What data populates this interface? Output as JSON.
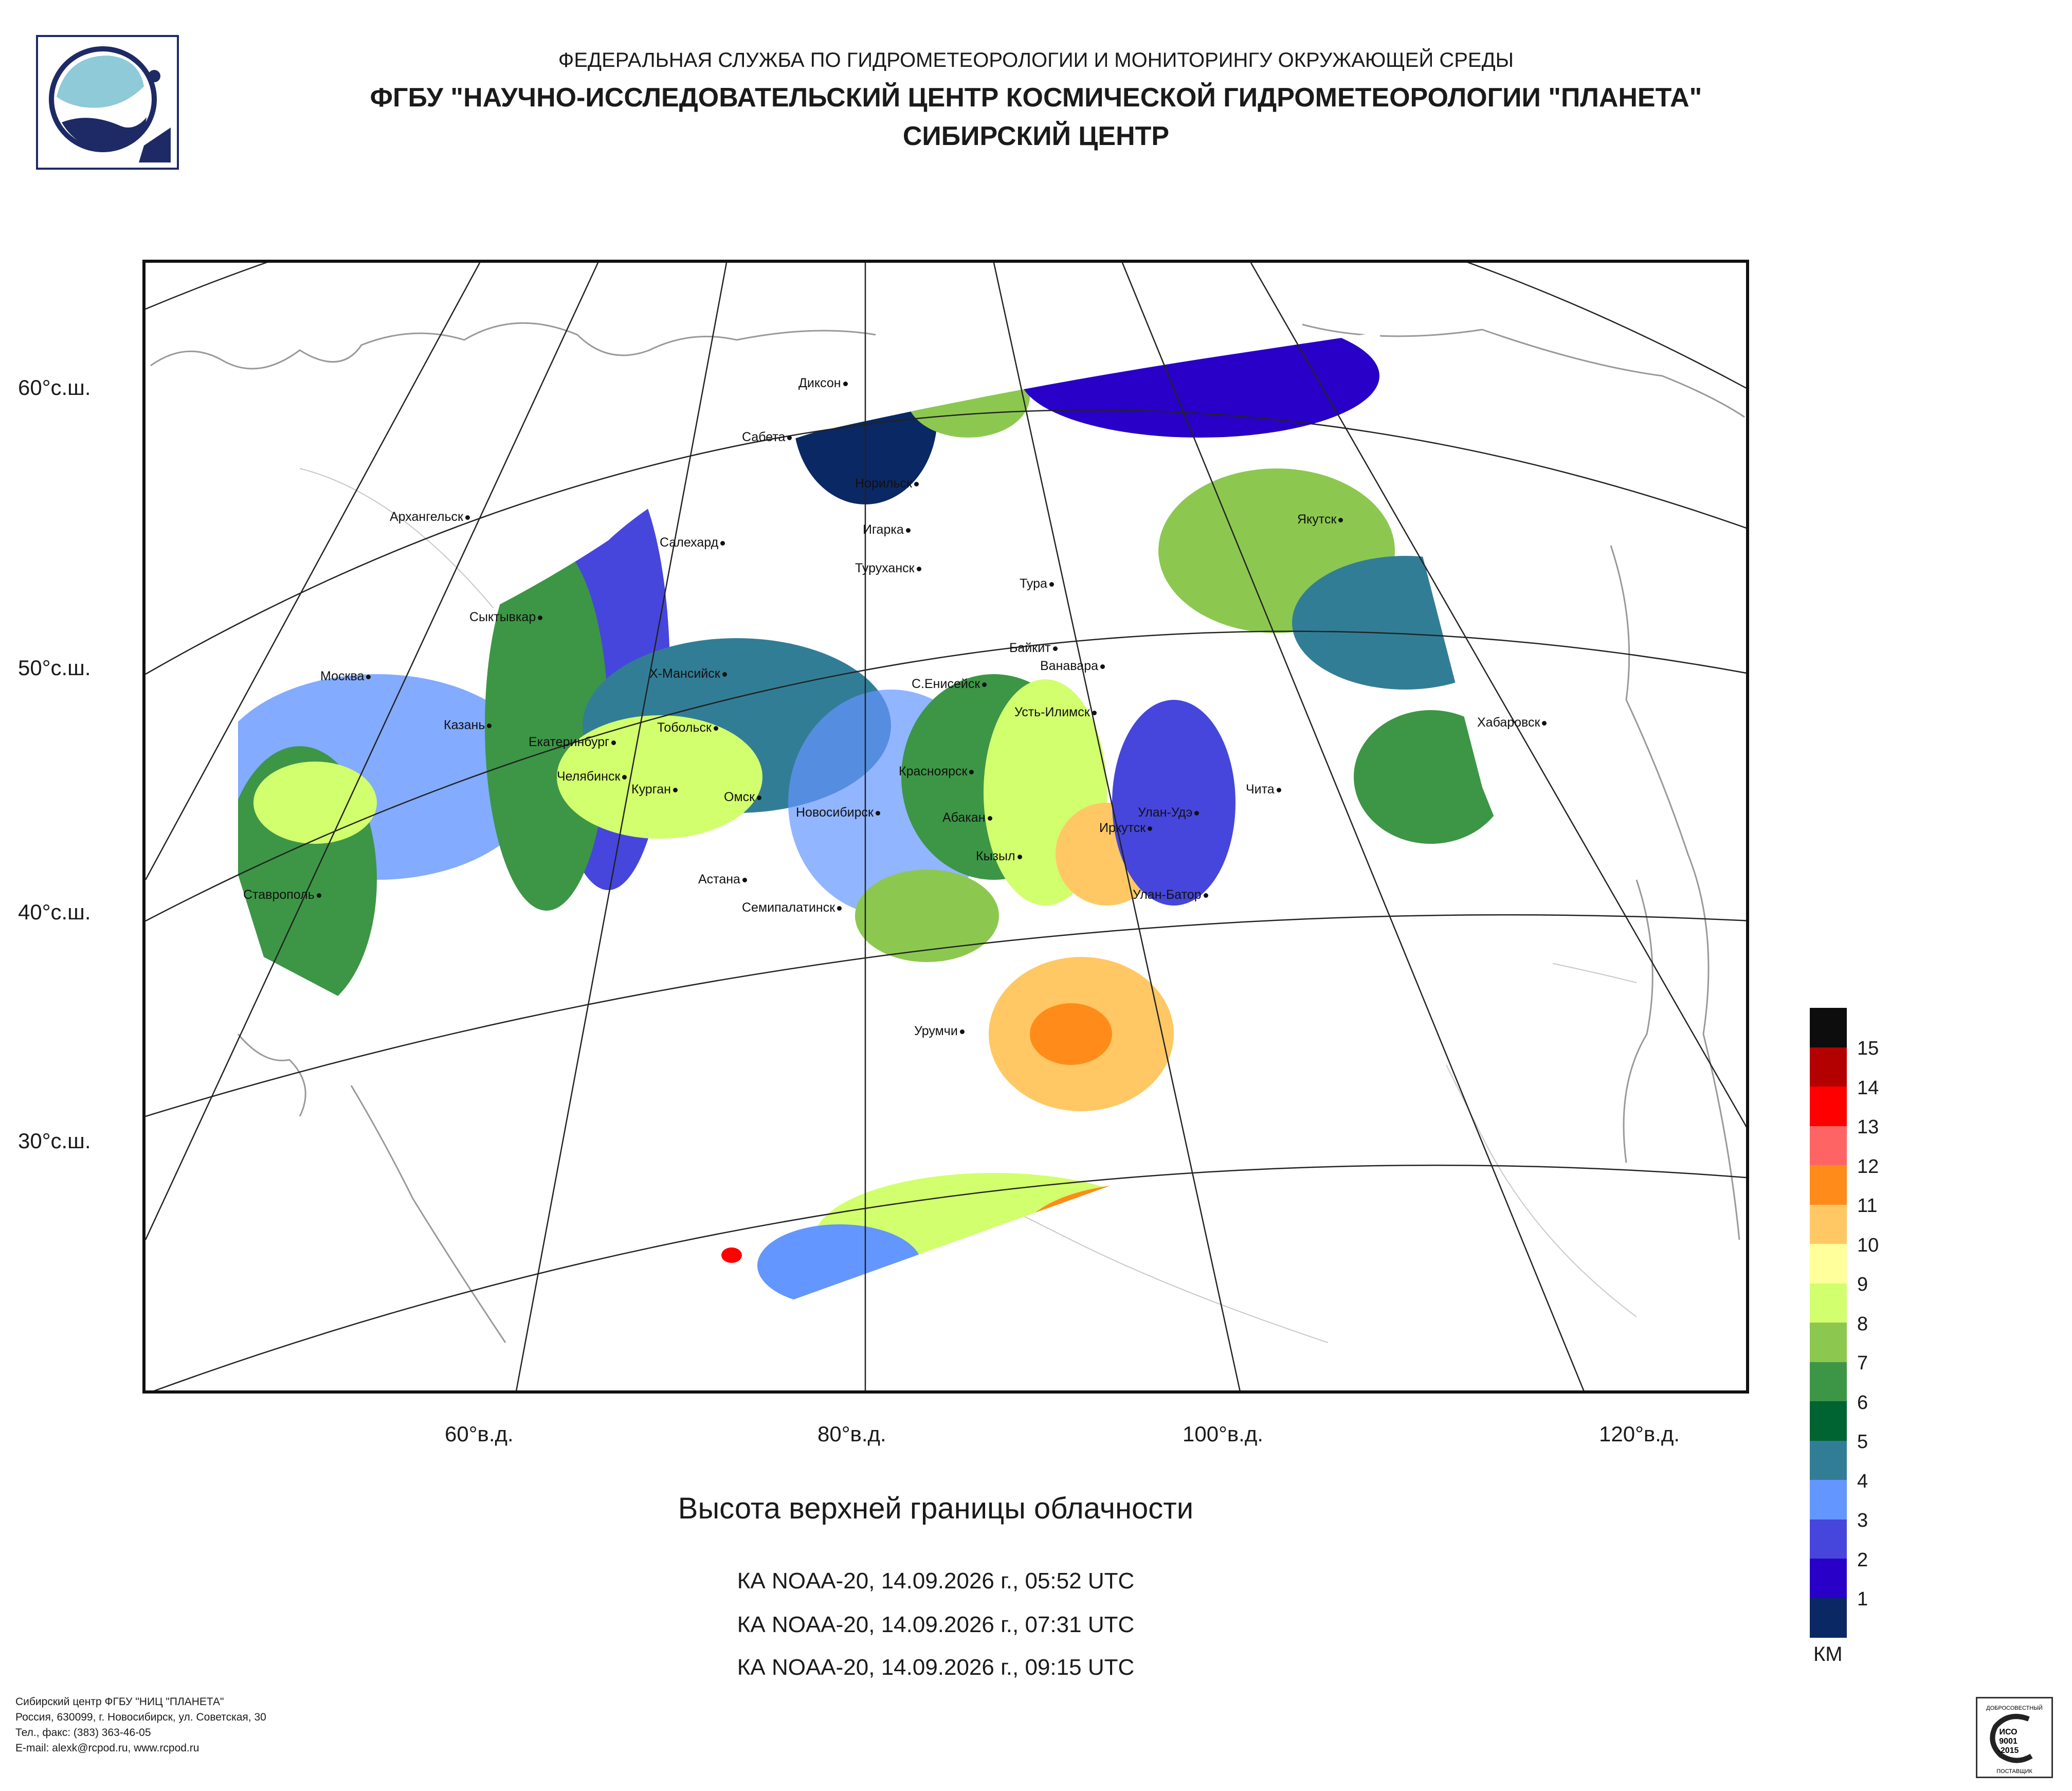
{
  "header": {
    "agency": "ФЕДЕРАЛЬНАЯ СЛУЖБА ПО ГИДРОМЕТЕОРОЛОГИИ И МОНИТОРИНГУ ОКРУЖАЮЩЕЙ СРЕДЫ",
    "institute": "ФГБУ \"НАУЧНО-ИССЛЕДОВАТЕЛЬСКИЙ ЦЕНТР КОСМИЧЕСКОЙ ГИДРОМЕТЕОРОЛОГИИ \"ПЛАНЕТА\"",
    "center": "СИБИРСКИЙ ЦЕНТР"
  },
  "map": {
    "lat_labels": [
      "60°с.ш.",
      "50°с.ш.",
      "40°с.ш.",
      "30°с.ш."
    ],
    "lon_labels": [
      "60°в.д.",
      "80°в.д.",
      "100°в.д.",
      "120°в.д."
    ],
    "cities": [
      "Диксон",
      "Сабета",
      "Норильск",
      "Игарка",
      "Салехард",
      "Туруханск",
      "Тура",
      "Архангельск",
      "Якутск",
      "Сыктывкар",
      "Байкит",
      "Ванавара",
      "Москва",
      "Х-Мансийск",
      "С.Енисейск",
      "Усть-Илимск",
      "Хабаровск",
      "Казань",
      "Тобольск",
      "Екатеринбург",
      "Красноярск",
      "Чита",
      "Челябинск",
      "Курган",
      "Омск",
      "Новосибирск",
      "Абакан",
      "Улан-Удэ",
      "Иркутск",
      "Кызыл",
      "Астана",
      "Улан-Батор",
      "Ставрополь",
      "Семипалатинск",
      "Урумчи"
    ]
  },
  "product": {
    "title": "Высота верхней границы облачности",
    "passes": [
      "КА NOAA-20, 14.09.2026 г., 05:52 UTC",
      "КА NOAA-20, 14.09.2026 г., 07:31 UTC",
      "КА NOAA-20, 14.09.2026 г., 09:15 UTC"
    ]
  },
  "legend": {
    "unit": "КМ",
    "levels": [
      {
        "label": "15",
        "color": "#0d0d0d"
      },
      {
        "label": "14",
        "color": "#b30000"
      },
      {
        "label": "13",
        "color": "#ff0000"
      },
      {
        "label": "12",
        "color": "#ff6464"
      },
      {
        "label": "11",
        "color": "#ff8c1a"
      },
      {
        "label": "10",
        "color": "#ffc864"
      },
      {
        "label": "9",
        "color": "#ffff9b"
      },
      {
        "label": "8",
        "color": "#d2ff6e"
      },
      {
        "label": "7",
        "color": "#8cc850"
      },
      {
        "label": "6",
        "color": "#3c9646"
      },
      {
        "label": "5",
        "color": "#006432"
      },
      {
        "label": "4",
        "color": "#327d96"
      },
      {
        "label": "3",
        "color": "#6496ff"
      },
      {
        "label": "2",
        "color": "#4646dc"
      },
      {
        "label": "1",
        "color": "#2800c8"
      },
      {
        "label": "",
        "color": "#0a2864"
      }
    ]
  },
  "footer": {
    "lines": [
      "Сибирский центр ФГБУ \"НИЦ \"ПЛАНЕТА\"",
      "Россия, 630099, г. Новосибирск, ул. Советская, 30",
      "Тел., факс: (383) 363-46-05",
      "E-mail: alexk@rcpod.ru, www.rcpod.ru"
    ]
  },
  "certificate": {
    "top": "ДОБРОСОВЕСТНЫЙ",
    "line1": "ИСО",
    "line2": "9001",
    "line3": "-2015",
    "bottom": "ПОСТАВЩИК"
  }
}
